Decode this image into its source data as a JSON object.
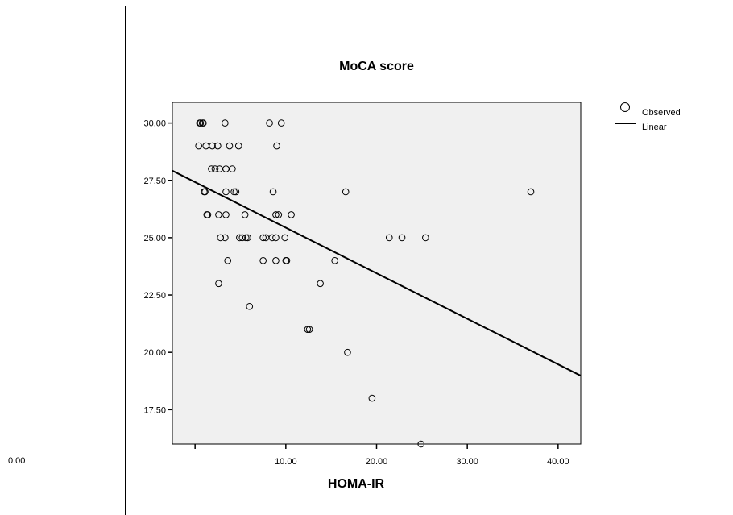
{
  "stray_label": "0.00",
  "chart_data": {
    "type": "scatter",
    "title": "MoCA score",
    "xlabel": "HOMA-IR",
    "ylabel": "",
    "xlim": [
      -2.5,
      42.5
    ],
    "ylim": [
      16.0,
      30.9
    ],
    "x_ticks": [
      0,
      10,
      20,
      30,
      40
    ],
    "x_tick_labels": [
      "",
      "10.00",
      "20.00",
      "30.00",
      "40.00"
    ],
    "y_ticks": [
      17.5,
      20.0,
      22.5,
      25.0,
      27.5,
      30.0
    ],
    "y_tick_labels": [
      "17.50",
      "20.00",
      "22.50",
      "25.00",
      "27.50",
      "30.00"
    ],
    "series": [
      {
        "name": "Observed",
        "kind": "points",
        "x": [
          0.5,
          0.6,
          0.8,
          0.9,
          3.3,
          8.2,
          9.5,
          0.4,
          1.2,
          1.9,
          2.5,
          3.8,
          4.8,
          9.0,
          1.8,
          2.2,
          2.7,
          3.4,
          4.1,
          1.0,
          1.1,
          3.4,
          4.3,
          4.5,
          8.6,
          16.6,
          1.3,
          1.4,
          2.6,
          3.4,
          5.5,
          8.9,
          9.2,
          10.6,
          2.8,
          3.3,
          4.9,
          5.2,
          5.6,
          5.8,
          7.5,
          7.8,
          8.5,
          8.9,
          9.9,
          21.4,
          22.8,
          25.4,
          37.0,
          3.6,
          7.5,
          8.9,
          10.0,
          10.1,
          15.4,
          2.6,
          13.8,
          6.0,
          12.4,
          12.6,
          16.8,
          19.5,
          24.9
        ],
        "y": [
          30,
          30,
          30,
          30,
          30,
          30,
          30,
          29,
          29,
          29,
          29,
          29,
          29,
          29,
          28,
          28,
          28,
          28,
          28,
          27,
          27,
          27,
          27,
          27,
          27,
          27,
          26,
          26,
          26,
          26,
          26,
          26,
          26,
          26,
          25,
          25,
          25,
          25,
          25,
          25,
          25,
          25,
          25,
          25,
          25,
          25,
          25,
          25,
          27,
          24,
          24,
          24,
          24,
          24,
          24,
          23,
          23,
          22,
          21,
          21,
          20,
          18,
          16
        ]
      },
      {
        "name": "Linear",
        "kind": "line",
        "x": [
          -2.5,
          42.5
        ],
        "y": [
          27.92,
          18.98
        ]
      }
    ],
    "legend_position": "top-right",
    "grid": false,
    "plot_background": "#f0f0f0",
    "marker_color": "#000000",
    "line_color": "#000000"
  }
}
